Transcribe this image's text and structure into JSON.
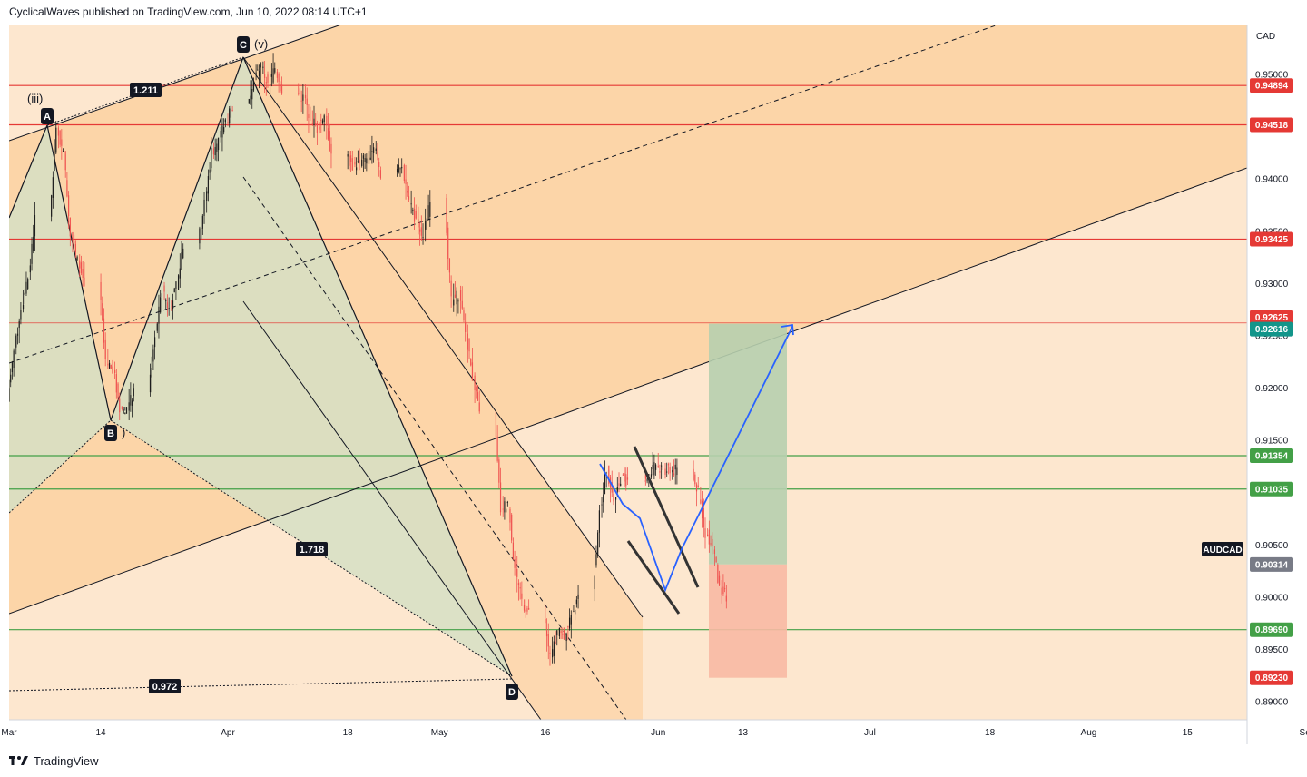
{
  "header": {
    "publisher_text": "CyclicalWaves published on TradingView.com, Jun 10, 2022 08:14 UTC+1"
  },
  "footer": {
    "brand": "TradingView"
  },
  "colors": {
    "background_zone": "#fde7cf",
    "channel_zone": "#fcd5a8",
    "retrace_zone": "#d6dfc4",
    "resistance": "#e53935",
    "support": "#43a047",
    "projection": "#2962ff",
    "target_zone": "#b7cfae",
    "stop_zone": "#f8b9a3",
    "candle_up": "#1d1d1d",
    "candle_down": "#ef5350"
  },
  "chart_data": {
    "type": "candlestick",
    "symbol": "AUDCAD",
    "currency": "CAD",
    "x_ticks": [
      "Mar",
      "14",
      "Apr",
      "18",
      "May",
      "16",
      "Jun",
      "13",
      "Jul",
      "18",
      "Aug",
      "15",
      "Sep"
    ],
    "y_ticks": [
      "0.95000",
      "0.94000",
      "0.93500",
      "0.93000",
      "0.92500",
      "0.92000",
      "0.91500",
      "0.90500",
      "0.90000",
      "0.89500",
      "0.89000"
    ],
    "ylim": [
      0.887,
      0.956
    ],
    "horizontal_levels": [
      {
        "label": "0.94894",
        "value": 0.94894,
        "kind": "resistance"
      },
      {
        "label": "0.94518",
        "value": 0.94518,
        "kind": "resistance"
      },
      {
        "label": "0.93425",
        "value": 0.93425,
        "kind": "resistance"
      },
      {
        "label": "0.92625",
        "value": 0.92625,
        "kind": "resistance"
      },
      {
        "label": "0.92616",
        "value": 0.92616,
        "kind": "target"
      },
      {
        "label": "0.91354",
        "value": 0.91354,
        "kind": "support"
      },
      {
        "label": "0.91035",
        "value": 0.91035,
        "kind": "support"
      },
      {
        "label": "0.89690",
        "value": 0.8969,
        "kind": "support"
      },
      {
        "label": "0.89230",
        "value": 0.8923,
        "kind": "stop"
      }
    ],
    "current_price": {
      "label": "0.90314",
      "value": 0.90314
    },
    "pivots": [
      {
        "label": "A",
        "date": "2022-03-07",
        "value": 0.9455,
        "wave": "(iii)"
      },
      {
        "label": "B",
        "date": "2022-03-17",
        "value": 0.9172,
        "wave": ")"
      },
      {
        "label": "C",
        "date": "2022-04-05",
        "value": 0.9515,
        "wave": "(v)"
      },
      {
        "label": "D",
        "date": "2022-05-16",
        "value": 0.8925,
        "wave": ""
      }
    ],
    "fib_ratios": [
      "1.211",
      "1.718",
      "0.972"
    ],
    "annotations": [
      "AUDCAD"
    ]
  }
}
